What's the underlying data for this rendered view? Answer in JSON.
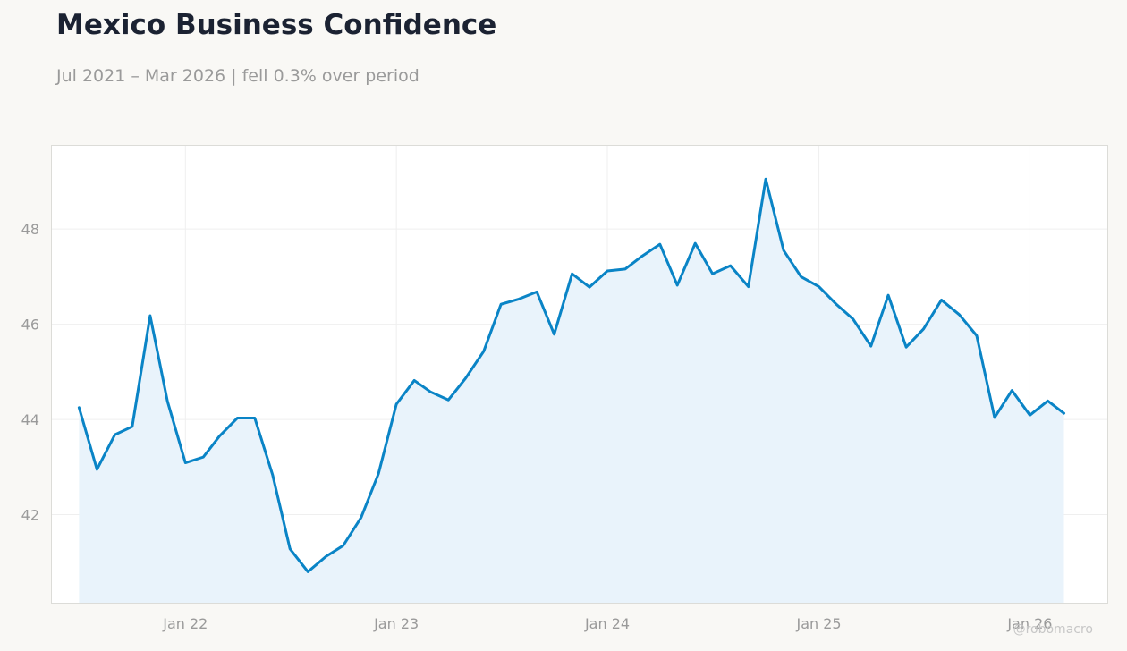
{
  "title": "Mexico Business Confidence",
  "subtitle": "Jul 2021 – Mar 2026 | fell 0.3% over period",
  "watermark": "@robomacro",
  "colors": {
    "line": "#0a84c6",
    "area": "#e9f3fb",
    "grid": "#efefef",
    "panel_border": "#dcdcd8",
    "background": "#f9f8f5"
  },
  "chart_data": {
    "type": "area",
    "title": "Mexico Business Confidence",
    "subtitle": "Jul 2021 – Mar 2026 | fell 0.3% over period",
    "xlabel": "",
    "ylabel": "",
    "x_range": [
      "2021-05-15",
      "2026-05-15"
    ],
    "ylim": [
      40.15,
      49.75
    ],
    "grid": true,
    "legend": "none",
    "x_ticks": [
      {
        "date": "2022-01-01",
        "label": "Jan 22"
      },
      {
        "date": "2023-01-01",
        "label": "Jan 23"
      },
      {
        "date": "2024-01-01",
        "label": "Jan 24"
      },
      {
        "date": "2025-01-01",
        "label": "Jan 25"
      },
      {
        "date": "2026-01-01",
        "label": "Jan 26"
      }
    ],
    "y_ticks": [
      {
        "value": 42,
        "label": "42"
      },
      {
        "value": 44,
        "label": "44"
      },
      {
        "value": 46,
        "label": "46"
      },
      {
        "value": 48,
        "label": "48"
      }
    ],
    "series": [
      {
        "x": [
          "2021-07",
          "2021-08",
          "2021-09",
          "2021-10",
          "2021-11",
          "2021-12",
          "2022-01",
          "2022-02",
          "2022-03",
          "2022-04",
          "2022-05",
          "2022-06",
          "2022-07",
          "2022-08",
          "2022-09",
          "2022-10",
          "2022-11",
          "2022-12",
          "2023-01",
          "2023-02",
          "2023-03",
          "2023-04",
          "2023-05",
          "2023-06",
          "2023-07",
          "2023-08",
          "2023-09",
          "2023-10",
          "2023-11",
          "2023-12",
          "2024-01",
          "2024-02",
          "2024-03",
          "2024-04",
          "2024-05",
          "2024-06",
          "2024-07",
          "2024-08",
          "2024-09",
          "2024-10",
          "2024-11",
          "2024-12",
          "2025-01",
          "2025-02",
          "2025-03",
          "2025-04",
          "2025-05",
          "2025-06",
          "2025-07",
          "2025-08",
          "2025-09",
          "2025-10",
          "2025-11",
          "2025-12",
          "2026-01",
          "2026-02",
          "2026-03"
        ],
        "values": [
          44.25,
          42.95,
          43.68,
          43.85,
          46.18,
          44.38,
          43.09,
          43.21,
          43.65,
          44.03,
          44.03,
          42.83,
          41.28,
          40.8,
          41.12,
          41.35,
          41.94,
          42.86,
          44.32,
          44.82,
          44.58,
          44.41,
          44.87,
          45.43,
          46.42,
          46.53,
          46.68,
          45.79,
          47.06,
          46.78,
          47.12,
          47.16,
          47.43,
          47.68,
          46.82,
          47.7,
          47.06,
          47.23,
          46.79,
          49.05,
          47.55,
          47.0,
          46.79,
          46.41,
          46.11,
          45.54,
          46.61,
          45.52,
          45.9,
          46.51,
          46.2,
          45.76,
          44.04,
          44.61,
          44.09,
          44.39,
          44.13
        ]
      }
    ]
  }
}
